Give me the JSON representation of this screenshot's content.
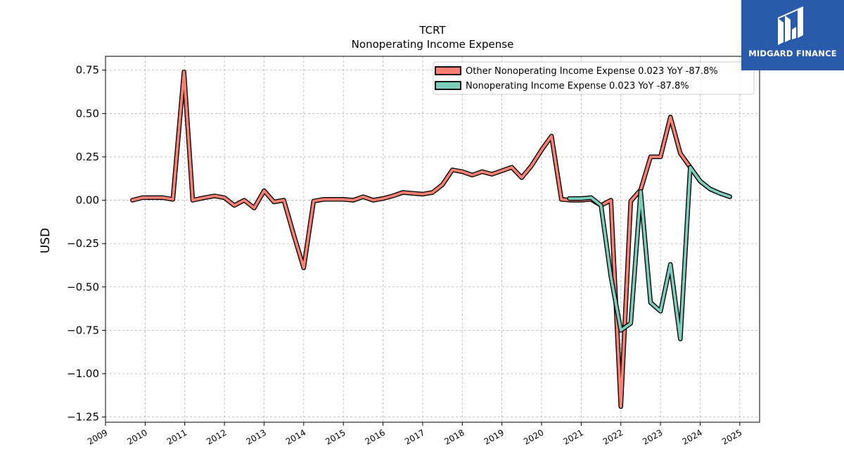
{
  "chart_data": {
    "type": "line",
    "title": "TCRT",
    "subtitle": "Nonoperating Income Expense",
    "ylabel": "USD",
    "xlabel": "",
    "xlim": [
      2009.0,
      2025.5
    ],
    "ylim": [
      -1.28,
      0.83
    ],
    "xticks": [
      "2009",
      "2010",
      "2011",
      "2012",
      "2013",
      "2014",
      "2015",
      "2016",
      "2017",
      "2018",
      "2019",
      "2020",
      "2021",
      "2022",
      "2023",
      "2024",
      "2025"
    ],
    "yticks": [
      "0.75",
      "0.50",
      "0.25",
      "0.00",
      "−0.25",
      "−0.50",
      "−0.75",
      "−1.00",
      "−1.25"
    ],
    "ytick_values": [
      0.75,
      0.5,
      0.25,
      0.0,
      -0.25,
      -0.5,
      -0.75,
      -1.0,
      -1.25
    ],
    "grid": true,
    "legend_position": "top-right",
    "series": [
      {
        "name": "Other Nonoperating Income Expense  0.023 YoY -87.8%",
        "color": "#fa8072",
        "x": [
          2009.68,
          2009.93,
          2010.18,
          2010.45,
          2010.7,
          2010.98,
          2011.2,
          2011.5,
          2011.75,
          2012.0,
          2012.25,
          2012.5,
          2012.75,
          2013.0,
          2013.25,
          2013.5,
          2013.75,
          2014.0,
          2014.25,
          2014.5,
          2014.75,
          2015.0,
          2015.25,
          2015.5,
          2015.75,
          2016.0,
          2016.25,
          2016.5,
          2016.75,
          2017.0,
          2017.25,
          2017.5,
          2017.75,
          2018.0,
          2018.25,
          2018.5,
          2018.75,
          2019.0,
          2019.25,
          2019.5,
          2019.75,
          2020.0,
          2020.25,
          2020.5,
          2020.75,
          2021.0,
          2021.25,
          2021.5,
          2021.75,
          2022.0,
          2022.25,
          2022.5,
          2022.75,
          2023.0,
          2023.25,
          2023.5,
          2023.75,
          2024.0,
          2024.25,
          2024.5,
          2024.75
        ],
        "y": [
          0.0,
          0.015,
          0.015,
          0.015,
          0.005,
          0.74,
          0.0,
          0.015,
          0.025,
          0.015,
          -0.03,
          0.0,
          -0.045,
          0.055,
          -0.01,
          0.0,
          -0.2,
          -0.39,
          -0.005,
          0.005,
          0.005,
          0.005,
          0.0,
          0.02,
          0.0,
          0.01,
          0.025,
          0.045,
          0.04,
          0.035,
          0.045,
          0.09,
          0.175,
          0.165,
          0.145,
          0.165,
          0.15,
          0.17,
          0.19,
          0.13,
          0.2,
          0.29,
          0.37,
          0.005,
          0.0,
          0.0,
          0.005,
          -0.03,
          0.0,
          -1.19,
          -0.005,
          0.06,
          0.25,
          0.25,
          0.48,
          0.27,
          0.19,
          0.11,
          0.065,
          0.04,
          0.02
        ]
      },
      {
        "name": "Nonoperating Income Expense  0.023 YoY -87.8%",
        "color": "#7ccdbb",
        "x": [
          2020.7,
          2021.0,
          2021.25,
          2021.5,
          2021.75,
          2022.0,
          2022.25,
          2022.5,
          2022.75,
          2023.0,
          2023.25,
          2023.5,
          2023.75,
          2024.0,
          2024.25,
          2024.5,
          2024.75
        ],
        "y": [
          0.01,
          0.01,
          0.015,
          -0.03,
          -0.44,
          -0.75,
          -0.71,
          0.05,
          -0.59,
          -0.64,
          -0.37,
          -0.8,
          0.19,
          0.11,
          0.065,
          0.04,
          0.02
        ]
      }
    ]
  },
  "logo": {
    "text": "MIDGARD FINANCE"
  }
}
